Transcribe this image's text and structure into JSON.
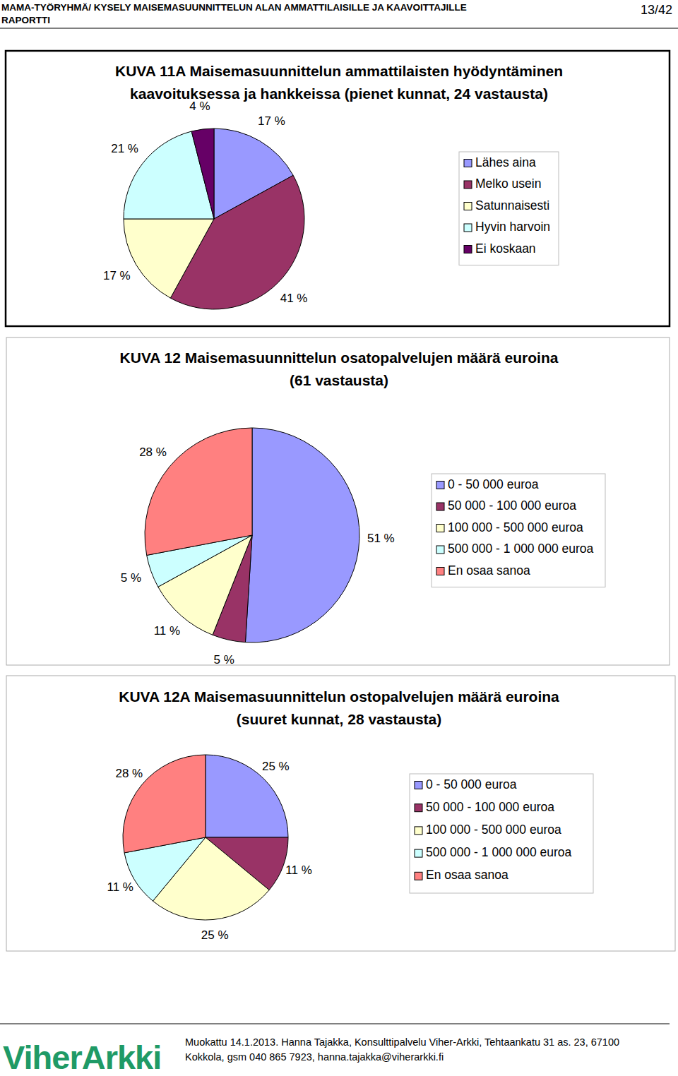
{
  "header": {
    "lines": [
      "MAMA-TYÖRYHMÄ/ KYSELY MAISEMASUUNNITTELUN ALAN AMMATTILAISILLE JA KAAVOITTAJILLE",
      "RAPORTTI"
    ],
    "page": "13/42"
  },
  "chart_data": [
    {
      "type": "pie",
      "title": [
        "KUVA 11A Maisemasuunnittelun ammattilaisten hyödyntäminen",
        "kaavoituksessa ja hankkeissa (pienet kunnat, 24 vastausta)"
      ],
      "categories": [
        "Lähes aina",
        "Melko usein",
        "Satunnaisesti",
        "Hyvin harvoin",
        "Ei koskaan"
      ],
      "values": [
        17,
        41,
        17,
        21,
        4
      ],
      "value_labels": [
        "17 %",
        "41 %",
        "17 %",
        "21 %",
        "4 %"
      ],
      "colors": [
        "#9999ff",
        "#993366",
        "#ffffcc",
        "#ccffff",
        "#660066"
      ],
      "data_labels": true,
      "legend": "right"
    },
    {
      "type": "pie",
      "title": [
        "KUVA 12 Maisemasuunnittelun osatopalvelujen määrä euroina",
        "(61 vastausta)"
      ],
      "categories": [
        "0 - 50 000 euroa",
        "50 000 - 100 000 euroa",
        "100 000 - 500 000 euroa",
        "500 000 - 1 000 000 euroa",
        "En osaa sanoa"
      ],
      "values": [
        51,
        5,
        11,
        5,
        28
      ],
      "value_labels": [
        "51 %",
        "5 %",
        "11 %",
        "5 %",
        "28 %"
      ],
      "colors": [
        "#9999ff",
        "#993366",
        "#ffffcc",
        "#ccffff",
        "#ff8080"
      ],
      "data_labels": true,
      "legend": "right"
    },
    {
      "type": "pie",
      "title": [
        "KUVA 12A Maisemasuunnittelun ostopalvelujen määrä euroina",
        "(suuret kunnat, 28 vastausta)"
      ],
      "categories": [
        "0 - 50 000 euroa",
        "50 000 - 100 000 euroa",
        "100 000 - 500 000 euroa",
        "500 000 - 1 000 000 euroa",
        "En osaa sanoa"
      ],
      "values": [
        25,
        11,
        25,
        11,
        28
      ],
      "value_labels": [
        "25 %",
        "11 %",
        "25 %",
        "11 %",
        "28 %"
      ],
      "colors": [
        "#9999ff",
        "#993366",
        "#ffffcc",
        "#ccffff",
        "#ff8080"
      ],
      "data_labels": true,
      "legend": "right"
    }
  ],
  "footer": {
    "logo": "ViherArkki",
    "lines": [
      "Muokattu 14.1.2013. Hanna Tajakka, Konsulttipalvelu Viher-Arkki, Tehtaankatu 31 as. 23, 67100",
      "Kokkola, gsm 040 865 7923, hanna.tajakka@viherarkki.fi"
    ]
  }
}
